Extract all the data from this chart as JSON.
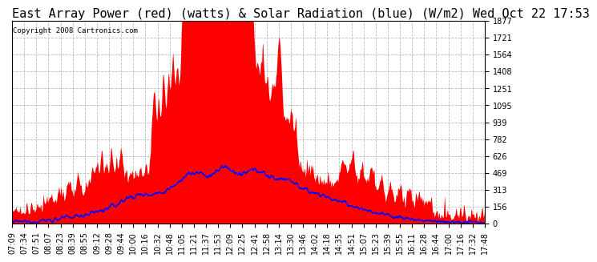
{
  "title": "East Array Power (red) (watts) & Solar Radiation (blue) (W/m2) Wed Oct 22 17:53",
  "copyright_text": "Copyright 2008 Cartronics.com",
  "yticks": [
    0.0,
    156.4,
    312.9,
    469.3,
    625.7,
    782.1,
    938.6,
    1095.0,
    1251.4,
    1407.8,
    1564.3,
    1720.7,
    1877.1
  ],
  "xtick_labels": [
    "07:09",
    "07:34",
    "07:51",
    "08:07",
    "08:23",
    "08:39",
    "08:55",
    "09:12",
    "09:28",
    "09:44",
    "10:00",
    "10:16",
    "10:32",
    "10:48",
    "11:05",
    "11:21",
    "11:37",
    "11:53",
    "12:09",
    "12:25",
    "12:41",
    "12:58",
    "13:14",
    "13:30",
    "13:46",
    "14:02",
    "14:18",
    "14:35",
    "14:51",
    "15:07",
    "15:23",
    "15:39",
    "15:55",
    "16:11",
    "16:28",
    "16:44",
    "17:00",
    "17:16",
    "17:32",
    "17:48"
  ],
  "bg_color": "#ffffff",
  "plot_bg_color": "#ffffff",
  "grid_color": "#bbbbbb",
  "red_color": "#ff0000",
  "blue_color": "#0000ff",
  "title_fontsize": 11,
  "tick_fontsize": 7,
  "ymax": 1877.1
}
